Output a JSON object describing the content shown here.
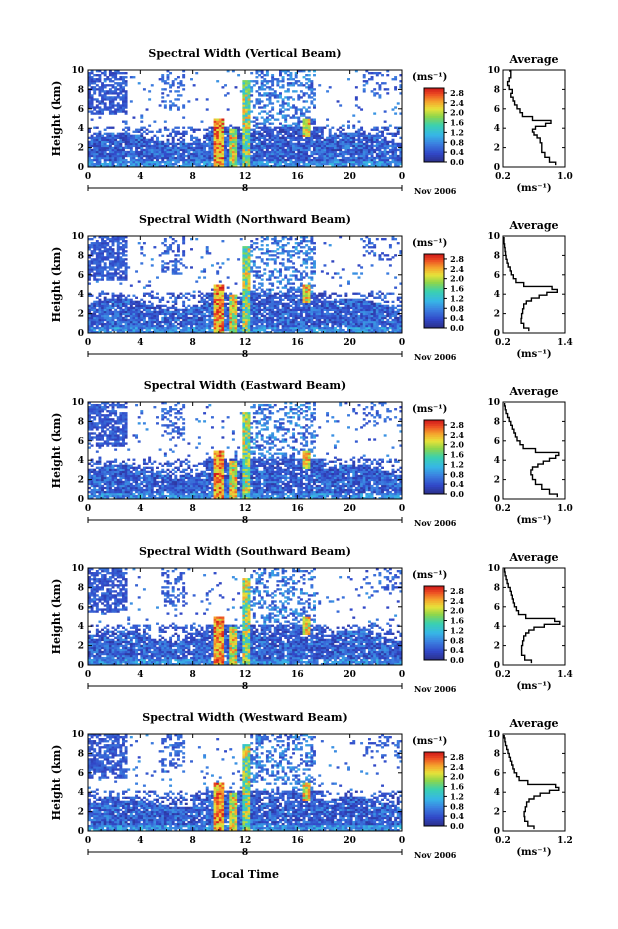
{
  "figure": {
    "x_axis_title": "Local Time",
    "colorbar_unit": "(ms⁻¹)",
    "average_title": "Average",
    "average_unit": "(ms⁻¹)",
    "date_label": "Nov 2006",
    "day_label": "8",
    "y_axis_label": "Height (km)"
  },
  "chart_data": [
    {
      "type": "heatmap",
      "title": "Spectral Width (Vertical Beam)",
      "ylabel": "Height (km)",
      "x_ticks": [
        "0",
        "4",
        "8",
        "12",
        "16",
        "20",
        "0"
      ],
      "y_ticks": [
        "0",
        "2",
        "4",
        "6",
        "8",
        "10"
      ],
      "xlim": [
        0,
        24
      ],
      "ylim": [
        0,
        10
      ],
      "colorbar": {
        "ticks": [
          "0.0",
          "0.4",
          "0.8",
          "1.2",
          "1.6",
          "2.0",
          "2.4",
          "2.8"
        ],
        "range": [
          0,
          3.0
        ]
      },
      "average": {
        "title": "Average",
        "x_ticks": [
          "0.2",
          "1.0"
        ],
        "xlim": [
          0.2,
          1.0
        ],
        "height": [
          0.2,
          0.5,
          1.0,
          1.5,
          2.0,
          2.5,
          3.0,
          3.3,
          3.6,
          3.9,
          4.2,
          4.5,
          4.8,
          5.2,
          5.6,
          6.0,
          6.4,
          6.8,
          7.2,
          7.6,
          8.0,
          8.4,
          8.8,
          9.2,
          9.6,
          9.9
        ],
        "value": [
          0.88,
          0.8,
          0.74,
          0.7,
          0.7,
          0.68,
          0.64,
          0.6,
          0.58,
          0.62,
          0.75,
          0.82,
          0.58,
          0.45,
          0.42,
          0.38,
          0.35,
          0.33,
          0.3,
          0.32,
          0.28,
          0.26,
          0.28,
          0.3,
          0.3,
          0.28
        ]
      }
    },
    {
      "type": "heatmap",
      "title": "Spectral Width (Northward Beam)",
      "ylabel": "Height (km)",
      "x_ticks": [
        "0",
        "4",
        "8",
        "12",
        "16",
        "20",
        "0"
      ],
      "y_ticks": [
        "0",
        "2",
        "4",
        "6",
        "8",
        "10"
      ],
      "xlim": [
        0,
        24
      ],
      "ylim": [
        0,
        10
      ],
      "colorbar": {
        "ticks": [
          "0.0",
          "0.4",
          "0.8",
          "1.2",
          "1.6",
          "2.0",
          "2.4",
          "2.8"
        ],
        "range": [
          0,
          3.0
        ]
      },
      "average": {
        "title": "Average",
        "x_ticks": [
          "0.2",
          "1.4"
        ],
        "xlim": [
          0.2,
          1.4
        ],
        "height": [
          0.2,
          0.5,
          1.0,
          1.5,
          2.0,
          2.5,
          3.0,
          3.3,
          3.6,
          3.9,
          4.2,
          4.5,
          4.8,
          5.2,
          5.6,
          6.0,
          6.4,
          6.8,
          7.2,
          7.6,
          8.0,
          8.4,
          8.8,
          9.2,
          9.6,
          9.9
        ],
        "value": [
          0.7,
          0.6,
          0.55,
          0.56,
          0.58,
          0.6,
          0.65,
          0.75,
          0.9,
          1.05,
          1.25,
          1.15,
          0.6,
          0.45,
          0.4,
          0.36,
          0.34,
          0.3,
          0.28,
          0.26,
          0.25,
          0.24,
          0.23,
          0.22,
          0.22,
          0.22
        ]
      }
    },
    {
      "type": "heatmap",
      "title": "Spectral Width (Eastward Beam)",
      "ylabel": "Height (km)",
      "x_ticks": [
        "0",
        "4",
        "8",
        "12",
        "16",
        "20",
        "0"
      ],
      "y_ticks": [
        "0",
        "2",
        "4",
        "6",
        "8",
        "10"
      ],
      "xlim": [
        0,
        24
      ],
      "ylim": [
        0,
        10
      ],
      "colorbar": {
        "ticks": [
          "0.0",
          "0.4",
          "0.8",
          "1.2",
          "1.6",
          "2.0",
          "2.4",
          "2.8"
        ],
        "range": [
          0,
          3.0
        ]
      },
      "average": {
        "title": "Average",
        "x_ticks": [
          "0.2",
          "1.0"
        ],
        "xlim": [
          0.2,
          1.0
        ],
        "height": [
          0.2,
          0.5,
          1.0,
          1.5,
          2.0,
          2.5,
          3.0,
          3.3,
          3.6,
          3.9,
          4.2,
          4.5,
          4.8,
          5.2,
          5.6,
          6.0,
          6.4,
          6.8,
          7.2,
          7.6,
          8.0,
          8.4,
          8.8,
          9.2,
          9.6,
          9.9
        ],
        "value": [
          0.9,
          0.8,
          0.7,
          0.62,
          0.58,
          0.56,
          0.58,
          0.65,
          0.72,
          0.8,
          0.88,
          0.92,
          0.62,
          0.46,
          0.42,
          0.38,
          0.36,
          0.34,
          0.32,
          0.3,
          0.28,
          0.26,
          0.24,
          0.23,
          0.22,
          0.22
        ]
      }
    },
    {
      "type": "heatmap",
      "title": "Spectral Width (Southward Beam)",
      "ylabel": "Height (km)",
      "x_ticks": [
        "0",
        "4",
        "8",
        "12",
        "16",
        "20",
        "0"
      ],
      "y_ticks": [
        "0",
        "2",
        "4",
        "6",
        "8",
        "10"
      ],
      "xlim": [
        0,
        24
      ],
      "ylim": [
        0,
        10
      ],
      "colorbar": {
        "ticks": [
          "0.0",
          "0.4",
          "0.8",
          "1.2",
          "1.6",
          "2.0",
          "2.4",
          "2.8"
        ],
        "range": [
          0,
          3.0
        ]
      },
      "average": {
        "title": "Average",
        "x_ticks": [
          "0.2",
          "1.4"
        ],
        "xlim": [
          0.2,
          1.4
        ],
        "height": [
          0.2,
          0.5,
          1.0,
          1.5,
          2.0,
          2.5,
          3.0,
          3.3,
          3.6,
          3.9,
          4.2,
          4.5,
          4.8,
          5.2,
          5.6,
          6.0,
          6.4,
          6.8,
          7.2,
          7.6,
          8.0,
          8.4,
          8.8,
          9.2,
          9.6,
          9.9
        ],
        "value": [
          0.75,
          0.62,
          0.56,
          0.56,
          0.58,
          0.6,
          0.64,
          0.7,
          0.8,
          1.0,
          1.3,
          1.2,
          0.64,
          0.5,
          0.46,
          0.42,
          0.4,
          0.38,
          0.36,
          0.34,
          0.3,
          0.28,
          0.26,
          0.24,
          0.23,
          0.22
        ]
      }
    },
    {
      "type": "heatmap",
      "title": "Spectral Width (Westward Beam)",
      "ylabel": "Height (km)",
      "x_ticks": [
        "0",
        "4",
        "8",
        "12",
        "16",
        "20",
        "0"
      ],
      "y_ticks": [
        "0",
        "2",
        "4",
        "6",
        "8",
        "10"
      ],
      "xlim": [
        0,
        24
      ],
      "ylim": [
        0,
        10
      ],
      "colorbar": {
        "ticks": [
          "0.0",
          "0.4",
          "0.8",
          "1.2",
          "1.6",
          "2.0",
          "2.4",
          "2.8"
        ],
        "range": [
          0,
          3.0
        ]
      },
      "average": {
        "title": "Average",
        "x_ticks": [
          "0.2",
          "1.2"
        ],
        "xlim": [
          0.2,
          1.2
        ],
        "height": [
          0.2,
          0.5,
          1.0,
          1.5,
          2.0,
          2.5,
          3.0,
          3.3,
          3.6,
          3.9,
          4.2,
          4.5,
          4.8,
          5.2,
          5.6,
          6.0,
          6.4,
          6.8,
          7.2,
          7.6,
          8.0,
          8.4,
          8.8,
          9.2,
          9.6,
          9.9
        ],
        "value": [
          0.7,
          0.6,
          0.55,
          0.54,
          0.56,
          0.58,
          0.62,
          0.7,
          0.8,
          0.95,
          1.1,
          1.05,
          0.6,
          0.46,
          0.42,
          0.38,
          0.36,
          0.34,
          0.32,
          0.3,
          0.28,
          0.26,
          0.24,
          0.23,
          0.22,
          0.22
        ]
      }
    }
  ]
}
